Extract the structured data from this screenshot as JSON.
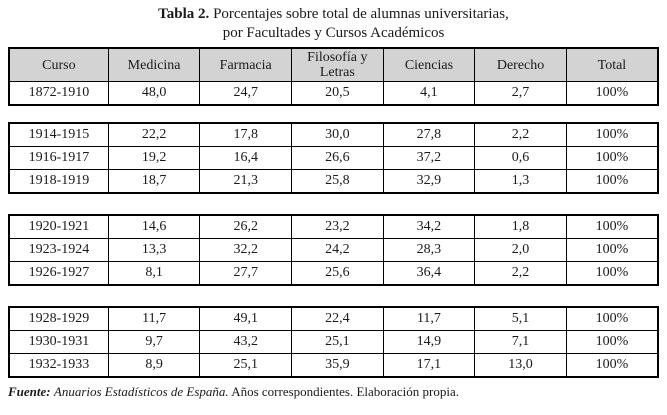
{
  "title": {
    "label": "Tabla 2.",
    "line1_rest": "Porcentajes sobre total de alumnas universitarias,",
    "line2": "por Facultades y Cursos Académicos"
  },
  "colors": {
    "header_bg": "#d3d3d3",
    "border": "#000000"
  },
  "table": {
    "columns": [
      "Curso",
      "Medicina",
      "Farmacia",
      "Filosofía y Letras",
      "Ciencias",
      "Derecho",
      "Total"
    ],
    "groups": [
      {
        "rows": [
          [
            "1872-1910",
            "48,0",
            "24,7",
            "20,5",
            "4,1",
            "2,7",
            "100%"
          ]
        ]
      },
      {
        "rows": [
          [
            "1914-1915",
            "22,2",
            "17,8",
            "30,0",
            "27,8",
            "2,2",
            "100%"
          ],
          [
            "1916-1917",
            "19,2",
            "16,4",
            "26,6",
            "37,2",
            "0,6",
            "100%"
          ],
          [
            "1918-1919",
            "18,7",
            "21,3",
            "25,8",
            "32,9",
            "1,3",
            "100%"
          ]
        ]
      },
      {
        "rows": [
          [
            "1920-1921",
            "14,6",
            "26,2",
            "23,2",
            "34,2",
            "1,8",
            "100%"
          ],
          [
            "1923-1924",
            "13,3",
            "32,2",
            "24,2",
            "28,3",
            "2,0",
            "100%"
          ],
          [
            "1926-1927",
            "8,1",
            "27,7",
            "25,6",
            "36,4",
            "2,2",
            "100%"
          ]
        ]
      },
      {
        "rows": [
          [
            "1928-1929",
            "11,7",
            "49,1",
            "22,4",
            "11,7",
            "5,1",
            "100%"
          ],
          [
            "1930-1931",
            "9,7",
            "43,2",
            "25,1",
            "14,9",
            "7,1",
            "100%"
          ],
          [
            "1932-1933",
            "8,9",
            "25,1",
            "35,9",
            "17,1",
            "13,0",
            "100%"
          ]
        ]
      }
    ]
  },
  "footer": {
    "label": "Fuente:",
    "source": "Anuarios Estadísticos de España.",
    "rest": "Años correspondientes. Elaboración propia."
  }
}
